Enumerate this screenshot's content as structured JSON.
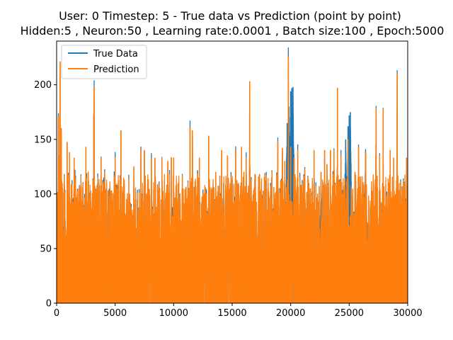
{
  "chart_data": {
    "type": "line",
    "title": "User: 0 Timestep: 5 - True data vs Prediction (point by point)",
    "subtitle": "Hidden:5 , Neuron:50 , Learning rate:0.0001 , Batch size:100 , Epoch:5000",
    "xlabel": "",
    "ylabel": "",
    "xlim": [
      0,
      30000
    ],
    "ylim": [
      0,
      240
    ],
    "x_ticks": [
      0,
      5000,
      10000,
      15000,
      20000,
      25000,
      30000
    ],
    "x_tick_labels": [
      "0",
      "5000",
      "10000",
      "15000",
      "20000",
      "25000",
      "30000"
    ],
    "y_ticks": [
      0,
      50,
      100,
      150,
      200
    ],
    "y_tick_labels": [
      "0",
      "50",
      "100",
      "150",
      "200"
    ],
    "grid": false,
    "legend_position": "top-left",
    "series": [
      {
        "name": "True Data",
        "color": "#1f77b4",
        "note_peaks": [
          [
            4500,
            105
          ],
          [
            5100,
            100
          ],
          [
            9900,
            88
          ],
          [
            19700,
            165
          ],
          [
            19850,
            180
          ],
          [
            20000,
            194
          ],
          [
            20100,
            197
          ],
          [
            20200,
            198
          ],
          [
            22600,
            120
          ],
          [
            24700,
            150
          ],
          [
            24900,
            162
          ],
          [
            25000,
            172
          ],
          [
            25100,
            175
          ],
          [
            26400,
            138
          ]
        ]
      },
      {
        "name": "Prediction",
        "color": "#ff7f0e",
        "peaks": [
          [
            150,
            171
          ],
          [
            250,
            133
          ],
          [
            300,
            221
          ],
          [
            400,
            160
          ],
          [
            500,
            105
          ],
          [
            800,
            58
          ],
          [
            900,
            147
          ],
          [
            1100,
            138
          ],
          [
            1300,
            103
          ],
          [
            1500,
            133
          ],
          [
            1700,
            95
          ],
          [
            1900,
            105
          ],
          [
            2100,
            108
          ],
          [
            2300,
            88
          ],
          [
            2500,
            143
          ],
          [
            2700,
            120
          ],
          [
            3000,
            87
          ],
          [
            3200,
            198
          ],
          [
            3400,
            105
          ],
          [
            3600,
            103
          ],
          [
            3800,
            133
          ],
          [
            4100,
            120
          ],
          [
            4400,
            103
          ],
          [
            4700,
            103
          ],
          [
            5000,
            133
          ],
          [
            5200,
            90
          ],
          [
            5500,
            158
          ],
          [
            5800,
            100
          ],
          [
            6000,
            52
          ],
          [
            6300,
            92
          ],
          [
            6600,
            125
          ],
          [
            6900,
            77
          ],
          [
            7200,
            140
          ],
          [
            7500,
            140
          ],
          [
            7800,
            62
          ],
          [
            8100,
            132
          ],
          [
            8400,
            133
          ],
          [
            8700,
            103
          ],
          [
            9000,
            133
          ],
          [
            9300,
            75
          ],
          [
            9500,
            130
          ],
          [
            9800,
            133
          ],
          [
            10000,
            133
          ],
          [
            10400,
            70
          ],
          [
            10700,
            58
          ],
          [
            11000,
            53
          ],
          [
            11300,
            100
          ],
          [
            11400,
            161
          ],
          [
            11600,
            158
          ],
          [
            11800,
            90
          ],
          [
            12000,
            62
          ],
          [
            12200,
            133
          ],
          [
            12500,
            100
          ],
          [
            12800,
            100
          ],
          [
            13000,
            153
          ],
          [
            13300,
            105
          ],
          [
            13600,
            120
          ],
          [
            13800,
            107
          ],
          [
            14100,
            140
          ],
          [
            14300,
            90
          ],
          [
            14600,
            135
          ],
          [
            14800,
            80
          ],
          [
            15000,
            105
          ],
          [
            15300,
            140
          ],
          [
            15500,
            55
          ],
          [
            15800,
            143
          ],
          [
            16000,
            120
          ],
          [
            16200,
            133
          ],
          [
            16500,
            203
          ],
          [
            16800,
            98
          ],
          [
            17000,
            57
          ],
          [
            17300,
            100
          ],
          [
            17500,
            62
          ],
          [
            17800,
            118
          ],
          [
            18100,
            47
          ],
          [
            18400,
            120
          ],
          [
            18700,
            100
          ],
          [
            18900,
            148
          ],
          [
            19100,
            53
          ],
          [
            19300,
            142
          ],
          [
            19500,
            130
          ],
          [
            19800,
            225
          ],
          [
            20000,
            143
          ],
          [
            20300,
            133
          ],
          [
            20600,
            140
          ],
          [
            20900,
            108
          ],
          [
            21200,
            123
          ],
          [
            21500,
            113
          ],
          [
            21800,
            80
          ],
          [
            22000,
            140
          ],
          [
            22300,
            100
          ],
          [
            22600,
            120
          ],
          [
            22900,
            140
          ],
          [
            23100,
            127
          ],
          [
            23400,
            140
          ],
          [
            23700,
            140
          ],
          [
            24000,
            197
          ],
          [
            24300,
            135
          ],
          [
            24600,
            100
          ],
          [
            24900,
            150
          ],
          [
            25200,
            78
          ],
          [
            25500,
            120
          ],
          [
            25800,
            143
          ],
          [
            26100,
            100
          ],
          [
            26400,
            138
          ],
          [
            26700,
            73
          ],
          [
            27000,
            80
          ],
          [
            27300,
            178
          ],
          [
            27600,
            135
          ],
          [
            27900,
            178
          ],
          [
            28200,
            88
          ],
          [
            28500,
            140
          ],
          [
            28800,
            133
          ],
          [
            29100,
            210
          ],
          [
            29400,
            110
          ],
          [
            29700,
            110
          ],
          [
            29900,
            133
          ],
          [
            30000,
            80
          ]
        ]
      }
    ]
  }
}
